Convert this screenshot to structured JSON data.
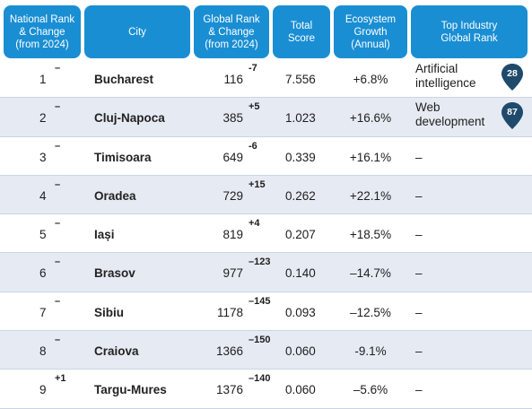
{
  "headers": {
    "national_rank": "National Rank\n& Change\n(from 2024)",
    "city": "City",
    "global_rank": "Global Rank\n& Change\n(from 2024)",
    "total_score": "Total\nScore",
    "ecosystem_growth": "Ecosystem\nGrowth\n(Annual)",
    "top_industry": "Top Industry\nGlobal Rank"
  },
  "colors": {
    "header_bg": "#1a8ed3",
    "row_shade": "#e6ebf3",
    "pin": "#1f4a6b"
  },
  "rows": [
    {
      "rank": "1",
      "rank_change": "–",
      "city": "Bucharest",
      "global_rank": "116",
      "global_change": "-7",
      "score": "7.556",
      "growth": "+6.8%",
      "industry": "Artificial intelligence",
      "industry_rank": "28"
    },
    {
      "rank": "2",
      "rank_change": "–",
      "city": "Cluj-Napoca",
      "global_rank": "385",
      "global_change": "+5",
      "score": "1.023",
      "growth": "+16.6%",
      "industry": "Web development",
      "industry_rank": "87"
    },
    {
      "rank": "3",
      "rank_change": "–",
      "city": "Timisoara",
      "global_rank": "649",
      "global_change": "-6",
      "score": "0.339",
      "growth": "+16.1%",
      "industry": "–"
    },
    {
      "rank": "4",
      "rank_change": "–",
      "city": "Oradea",
      "global_rank": "729",
      "global_change": "+15",
      "score": "0.262",
      "growth": "+22.1%",
      "industry": "–"
    },
    {
      "rank": "5",
      "rank_change": "–",
      "city": "Iași",
      "global_rank": "819",
      "global_change": "+4",
      "score": "0.207",
      "growth": "+18.5%",
      "industry": "–"
    },
    {
      "rank": "6",
      "rank_change": "–",
      "city": "Brasov",
      "global_rank": "977",
      "global_change": "–123",
      "score": "0.140",
      "growth": "–14.7%",
      "industry": "–"
    },
    {
      "rank": "7",
      "rank_change": "–",
      "city": "Sibiu",
      "global_rank": "1178",
      "global_change": "–145",
      "score": "0.093",
      "growth": "–12.5%",
      "industry": "–"
    },
    {
      "rank": "8",
      "rank_change": "–",
      "city": "Craiova",
      "global_rank": "1366",
      "global_change": "–150",
      "score": "0.060",
      "growth": "-9.1%",
      "industry": "–"
    },
    {
      "rank": "9",
      "rank_change": "+1",
      "city": "Targu-Mures",
      "global_rank": "1376",
      "global_change": "–140",
      "score": "0.060",
      "growth": "–5.6%",
      "industry": "–"
    }
  ]
}
